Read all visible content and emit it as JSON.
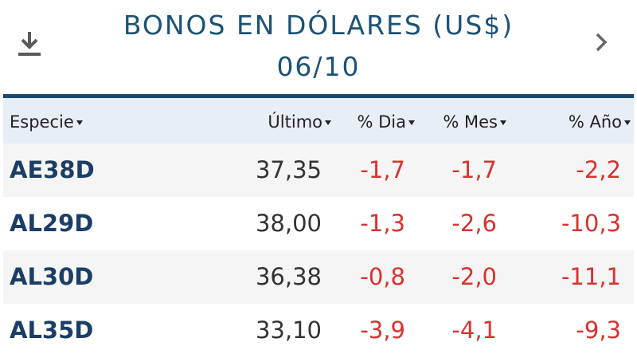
{
  "header": {
    "title": "BONOS EN DÓLARES (US$)",
    "date": "06/10"
  },
  "table": {
    "columns": [
      "Especie",
      "Último",
      "% Dia",
      "% Mes",
      "% Año"
    ],
    "rows": [
      [
        "AE38D",
        "37,35",
        "-1,7",
        "-1,7",
        "-2,2"
      ],
      [
        "AL29D",
        "38,00",
        "-1,3",
        "-2,6",
        "-10,3"
      ],
      [
        "AL30D",
        "36,38",
        "-0,8",
        "-2,0",
        "-11,1"
      ],
      [
        "AL35D",
        "33,10",
        "-3,9",
        "-4,1",
        "-9,3"
      ]
    ]
  }
}
